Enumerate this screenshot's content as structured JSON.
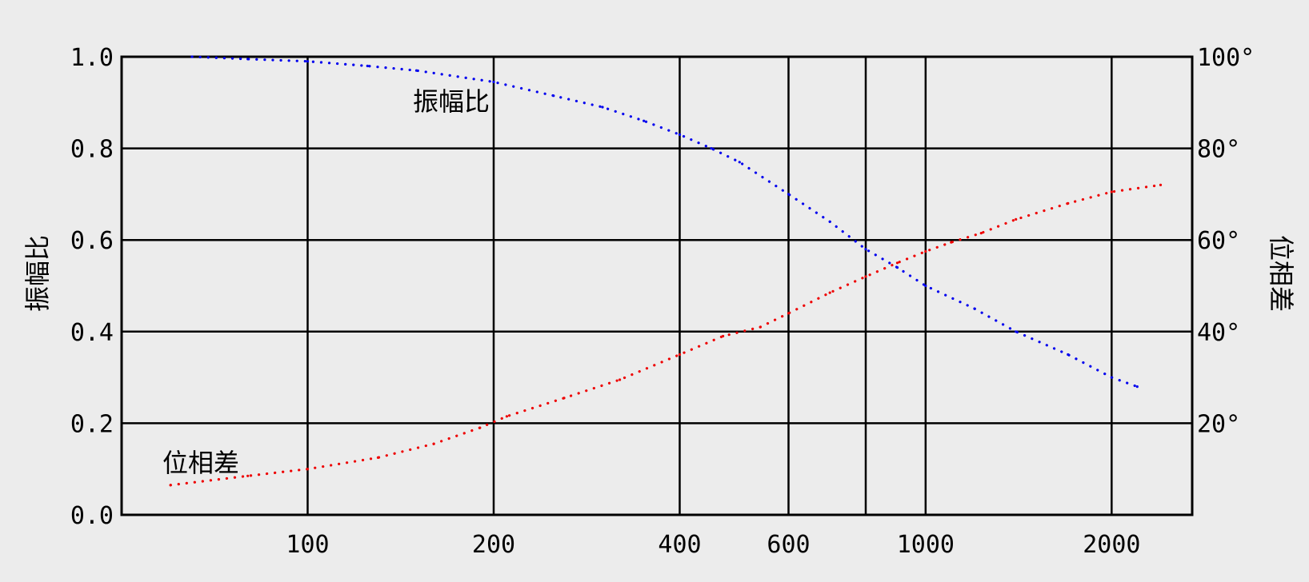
{
  "chart_data": {
    "type": "scatter",
    "xscale": "log",
    "xlim": [
      50,
      2700
    ],
    "x_ticks": [
      100,
      200,
      400,
      600,
      800,
      1000,
      2000
    ],
    "x_tick_labels": [
      "100",
      "200",
      "400",
      "600",
      "",
      "1000",
      "2000"
    ],
    "ylabel_left": "振幅比",
    "ylim_left": [
      0,
      1.0
    ],
    "y_ticks_left": [
      0.0,
      0.2,
      0.4,
      0.6,
      0.8,
      1.0
    ],
    "y_tick_labels_left": [
      "0.0",
      "0.2",
      "0.4",
      "0.6",
      "0.8",
      "1.0"
    ],
    "ylabel_right": "位相差",
    "ylim_right": [
      0,
      100
    ],
    "y_ticks_right": [
      20,
      40,
      60,
      80,
      100
    ],
    "y_tick_labels_right": [
      "20°",
      "40°",
      "60°",
      "80°",
      "100°"
    ],
    "grid": true,
    "series": [
      {
        "name": "振幅比",
        "axis": "left",
        "color": "#0000ee",
        "points": [
          [
            65,
            1.0
          ],
          [
            80,
            0.995
          ],
          [
            100,
            0.99
          ],
          [
            125,
            0.98
          ],
          [
            150,
            0.97
          ],
          [
            200,
            0.945
          ],
          [
            250,
            0.915
          ],
          [
            300,
            0.89
          ],
          [
            350,
            0.86
          ],
          [
            400,
            0.83
          ],
          [
            450,
            0.8
          ],
          [
            500,
            0.77
          ],
          [
            600,
            0.7
          ],
          [
            700,
            0.64
          ],
          [
            800,
            0.58
          ],
          [
            900,
            0.54
          ],
          [
            1000,
            0.5
          ],
          [
            1200,
            0.45
          ],
          [
            1400,
            0.4
          ],
          [
            1700,
            0.35
          ],
          [
            2000,
            0.3
          ],
          [
            2200,
            0.28
          ]
        ]
      },
      {
        "name": "位相差",
        "axis": "right",
        "color": "#ee0000",
        "points": [
          [
            60,
            6.5
          ],
          [
            80,
            8.5
          ],
          [
            100,
            10
          ],
          [
            130,
            12.5
          ],
          [
            160,
            15.5
          ],
          [
            190,
            19
          ],
          [
            210,
            21.5
          ],
          [
            260,
            25.5
          ],
          [
            320,
            29.5
          ],
          [
            400,
            35
          ],
          [
            470,
            39
          ],
          [
            540,
            41
          ],
          [
            600,
            44
          ],
          [
            700,
            48.5
          ],
          [
            800,
            52
          ],
          [
            900,
            55
          ],
          [
            1000,
            57.5
          ],
          [
            1100,
            59.5
          ],
          [
            1230,
            61.5
          ],
          [
            1400,
            64.5
          ],
          [
            1700,
            68
          ],
          [
            2000,
            70.5
          ],
          [
            2400,
            72
          ]
        ]
      }
    ]
  }
}
